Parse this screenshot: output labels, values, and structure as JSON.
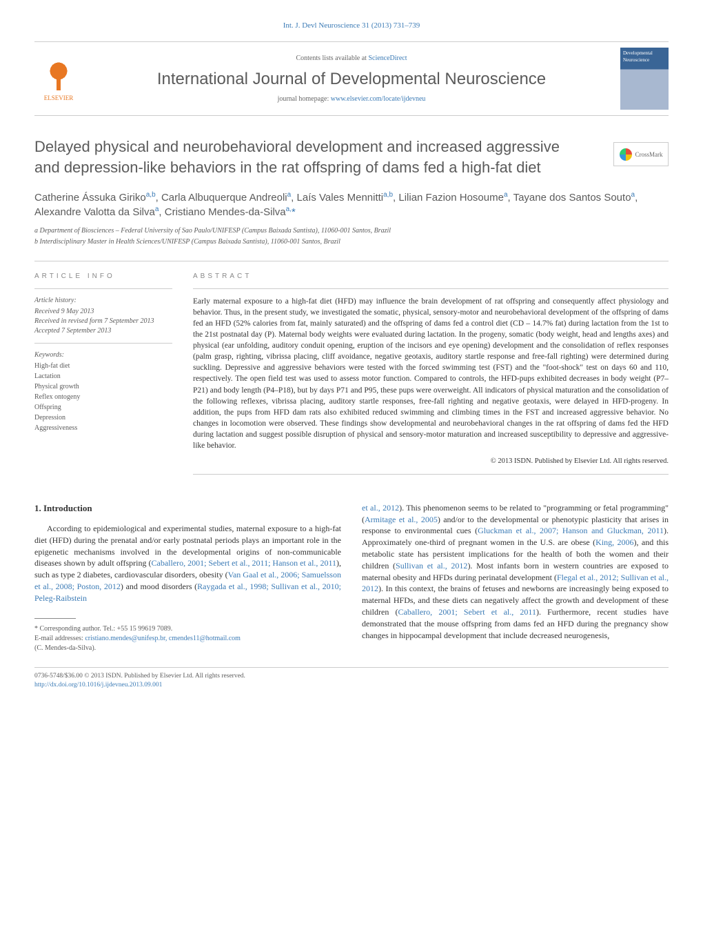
{
  "citation": "Int. J. Devl Neuroscience 31 (2013) 731–739",
  "header": {
    "contents_prefix": "Contents lists available at ",
    "contents_link": "ScienceDirect",
    "journal_name": "International Journal of Developmental Neuroscience",
    "homepage_prefix": "journal homepage: ",
    "homepage_link": "www.elsevier.com/locate/ijdevneu",
    "publisher": "ELSEVIER",
    "cover_text": "Developmental Neuroscience"
  },
  "crossmark": "CrossMark",
  "title": "Delayed physical and neurobehavioral development and increased aggressive and depression-like behaviors in the rat offspring of dams fed a high-fat diet",
  "authors_html": "Catherine Ássuka Giriko<sup>a,b</sup>, Carla Albuquerque Andreoli<sup>a</sup>, Laís Vales Mennitti<sup>a,b</sup>, Lilian Fazion Hosoume<sup>a</sup>, Tayane dos Santos Souto<sup>a</sup>, Alexandre Valotta da Silva<sup>a</sup>, Cristiano Mendes-da-Silva<sup>a,</sup><span class='ast'>*</span>",
  "affiliations": [
    "a Department of Biosciences – Federal University of Sao Paulo/UNIFESP (Campus Baixada Santista), 11060-001 Santos, Brazil",
    "b Interdisciplinary Master in Health Sciences/UNIFESP (Campus Baixada Santista), 11060-001 Santos, Brazil"
  ],
  "article_info": {
    "label": "ARTICLE INFO",
    "history_label": "Article history:",
    "history": [
      "Received 9 May 2013",
      "Received in revised form 7 September 2013",
      "Accepted 7 September 2013"
    ],
    "keywords_label": "Keywords:",
    "keywords": [
      "High-fat diet",
      "Lactation",
      "Physical growth",
      "Reflex ontogeny",
      "Offspring",
      "Depression",
      "Aggressiveness"
    ]
  },
  "abstract": {
    "label": "ABSTRACT",
    "text": "Early maternal exposure to a high-fat diet (HFD) may influence the brain development of rat offspring and consequently affect physiology and behavior. Thus, in the present study, we investigated the somatic, physical, sensory-motor and neurobehavioral development of the offspring of dams fed an HFD (52% calories from fat, mainly saturated) and the offspring of dams fed a control diet (CD – 14.7% fat) during lactation from the 1st to the 21st postnatal day (P). Maternal body weights were evaluated during lactation. In the progeny, somatic (body weight, head and lengths axes) and physical (ear unfolding, auditory conduit opening, eruption of the incisors and eye opening) development and the consolidation of reflex responses (palm grasp, righting, vibrissa placing, cliff avoidance, negative geotaxis, auditory startle response and free-fall righting) were determined during suckling. Depressive and aggressive behaviors were tested with the forced swimming test (FST) and the \"foot-shock\" test on days 60 and 110, respectively. The open field test was used to assess motor function. Compared to controls, the HFD-pups exhibited decreases in body weight (P7–P21) and body length (P4–P18), but by days P71 and P95, these pups were overweight. All indicators of physical maturation and the consolidation of the following reflexes, vibrissa placing, auditory startle responses, free-fall righting and negative geotaxis, were delayed in HFD-progeny. In addition, the pups from HFD dam rats also exhibited reduced swimming and climbing times in the FST and increased aggressive behavior. No changes in locomotion were observed. These findings show developmental and neurobehavioral changes in the rat offspring of dams fed the HFD during lactation and suggest possible disruption of physical and sensory-motor maturation and increased susceptibility to depressive and aggressive-like behavior.",
    "copyright": "© 2013 ISDN. Published by Elsevier Ltd. All rights reserved."
  },
  "section1": {
    "heading": "1. Introduction",
    "col1_html": "According to epidemiological and experimental studies, maternal exposure to a high-fat diet (HFD) during the prenatal and/or early postnatal periods plays an important role in the epigenetic mechanisms involved in the developmental origins of non-communicable diseases shown by adult offspring (<a>Caballero, 2001; Sebert et al., 2011; Hanson et al., 2011</a>), such as type 2 diabetes, cardiovascular disorders, obesity (<a>Van Gaal et al., 2006; Samuelsson et al., 2008; Poston, 2012</a>) and mood disorders (<a>Raygada et al., 1998; Sullivan et al., 2010; Peleg-Raibstein</a>",
    "col2_html": "<a>et al., 2012</a>). This phenomenon seems to be related to \"programming or fetal programming\" (<a>Armitage et al., 2005</a>) and/or to the developmental or phenotypic plasticity that arises in response to environmental cues (<a>Gluckman et al., 2007; Hanson and Gluckman, 2011</a>). Approximately one-third of pregnant women in the U.S. are obese (<a>King, 2006</a>), and this metabolic state has persistent implications for the health of both the women and their children (<a>Sullivan et al., 2012</a>). Most infants born in western countries are exposed to maternal obesity and HFDs during perinatal development (<a>Flegal et al., 2012; Sullivan et al., 2012</a>). In this context, the brains of fetuses and newborns are increasingly being exposed to maternal HFDs, and these diets can negatively affect the growth and development of these children (<a>Caballero, 2001; Sebert et al., 2011</a>). Furthermore, recent studies have demonstrated that the mouse offspring from dams fed an HFD during the pregnancy show changes in hippocampal development that include decreased neurogenesis,"
  },
  "footnotes": {
    "corr": "* Corresponding author. Tel.: +55 15 99619 7089.",
    "email_label": "E-mail addresses: ",
    "emails": "cristiano.mendes@unifesp.br, cmendes11@hotmail.com",
    "email_person": "(C. Mendes-da-Silva)."
  },
  "bottom": {
    "left_line1": "0736-5748/$36.00 © 2013 ISDN. Published by Elsevier Ltd. All rights reserved.",
    "doi": "http://dx.doi.org/10.1016/j.ijdevneu.2013.09.001"
  },
  "colors": {
    "link": "#3a7ab5",
    "text": "#333333",
    "muted": "#5a5a5a",
    "elsevier": "#e87722",
    "border": "#cccccc"
  },
  "typography": {
    "body_pt": 12,
    "title_pt": 22,
    "journal_pt": 24,
    "abstract_pt": 11.5,
    "small_pt": 10
  }
}
